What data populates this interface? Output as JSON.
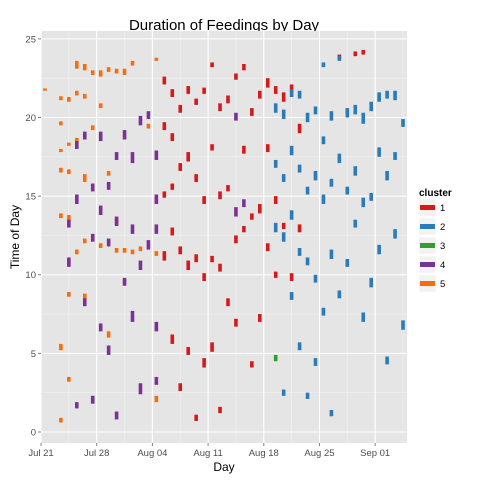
{
  "chart_data": {
    "type": "scatter",
    "title": "Duration of Feedings by Day",
    "xlabel": "Day",
    "ylabel": "Time of Day",
    "x_ticks": [
      "Jul 21",
      "Jul 28",
      "Aug 04",
      "Aug 11",
      "Aug 18",
      "Aug 25",
      "Sep 01"
    ],
    "y_ticks": [
      "0",
      "5",
      "10",
      "15",
      "20",
      "25"
    ],
    "xlim": [
      "2013-07-21",
      "2013-09-05"
    ],
    "ylim": [
      -0.7,
      25.5
    ],
    "grid": true,
    "legend": {
      "title": "cluster",
      "position": "right",
      "entries": [
        "1",
        "2",
        "3",
        "4",
        "5"
      ]
    },
    "colors": {
      "1": "#d7191c",
      "2": "#2c7bb6",
      "3": "#33a02c",
      "4": "#7b3294",
      "5": "#f46d0f",
      "panel": "#e5e5e5",
      "grid": "#ffffff"
    },
    "series": [
      {
        "name": "5",
        "x": [
          "2013-07-21",
          "2013-07-23",
          "2013-07-23",
          "2013-07-23",
          "2013-07-23",
          "2013-07-23",
          "2013-07-23",
          "2013-07-23",
          "2013-07-24",
          "2013-07-24",
          "2013-07-24",
          "2013-07-24",
          "2013-07-24",
          "2013-07-24",
          "2013-07-25",
          "2013-07-25",
          "2013-07-25",
          "2013-07-25",
          "2013-07-26",
          "2013-07-26",
          "2013-07-26",
          "2013-07-26",
          "2013-07-26",
          "2013-07-27",
          "2013-07-27",
          "2013-07-28",
          "2013-07-28",
          "2013-07-28",
          "2013-07-29",
          "2013-07-29",
          "2013-07-29",
          "2013-07-30",
          "2013-07-30",
          "2013-07-30",
          "2013-07-31",
          "2013-07-31",
          "2013-08-01",
          "2013-08-01",
          "2013-08-02",
          "2013-08-03",
          "2013-08-04",
          "2013-08-04",
          "2013-08-04"
        ],
        "y": [
          21.7,
          21.1,
          19.5,
          17.8,
          16.5,
          13.6,
          5.2,
          0.6,
          21.0,
          18.2,
          16.4,
          13.4,
          8.6,
          3.2,
          23.1,
          21.4,
          18.4,
          11.3,
          23.0,
          21.2,
          15.9,
          12.0,
          8.4,
          22.7,
          19.2,
          22.6,
          20.6,
          11.7,
          22.9,
          16.3,
          6.0,
          22.8,
          13.3,
          11.4,
          22.7,
          11.4,
          23.3,
          11.3,
          11.5,
          19.3,
          23.6,
          11.2,
          1.9
        ],
        "duration_hours": [
          0.15,
          0.25,
          0.25,
          0.2,
          0.3,
          0.3,
          0.4,
          0.3,
          0.3,
          0.2,
          0.3,
          0.4,
          0.3,
          0.3,
          0.5,
          0.3,
          0.3,
          0.3,
          0.4,
          0.3,
          0.5,
          0.3,
          0.4,
          0.3,
          0.3,
          0.4,
          0.3,
          0.3,
          0.3,
          0.3,
          0.4,
          0.3,
          0.3,
          0.3,
          0.4,
          0.3,
          0.3,
          0.3,
          0.3,
          0.3,
          0.2,
          0.3,
          0.4
        ]
      },
      {
        "name": "4",
        "x": [
          "2013-07-24",
          "2013-07-24",
          "2013-07-25",
          "2013-07-25",
          "2013-07-25",
          "2013-07-26",
          "2013-07-26",
          "2013-07-27",
          "2013-07-27",
          "2013-07-27",
          "2013-07-28",
          "2013-07-28",
          "2013-07-28",
          "2013-07-29",
          "2013-07-29",
          "2013-07-29",
          "2013-07-30",
          "2013-07-30",
          "2013-07-30",
          "2013-07-31",
          "2013-07-31",
          "2013-08-01",
          "2013-08-01",
          "2013-08-01",
          "2013-08-02",
          "2013-08-02",
          "2013-08-02",
          "2013-08-03",
          "2013-08-03",
          "2013-08-04",
          "2013-08-04",
          "2013-08-04",
          "2013-08-04",
          "2013-08-04",
          "2013-08-14",
          "2013-08-14",
          "2013-08-15"
        ],
        "y": [
          13.0,
          10.5,
          18.0,
          14.5,
          1.5,
          18.6,
          8.0,
          15.3,
          12.1,
          1.8,
          18.5,
          13.8,
          6.4,
          15.4,
          11.8,
          4.9,
          17.3,
          13.1,
          0.8,
          18.6,
          9.3,
          17.1,
          12.6,
          7.0,
          19.5,
          10.3,
          2.4,
          19.9,
          11.6,
          17.3,
          14.5,
          12.6,
          6.4,
          3.0,
          19.8,
          13.7,
          14.3
        ],
        "duration_hours": [
          0.5,
          0.6,
          0.5,
          0.6,
          0.4,
          0.5,
          0.5,
          0.5,
          0.5,
          0.5,
          0.6,
          0.6,
          0.5,
          0.5,
          0.5,
          0.6,
          0.5,
          0.6,
          0.5,
          0.6,
          0.5,
          0.7,
          0.6,
          0.7,
          0.6,
          0.6,
          0.7,
          0.5,
          0.6,
          0.6,
          0.6,
          0.6,
          0.6,
          0.5,
          0.5,
          0.6,
          0.5
        ]
      },
      {
        "name": "3",
        "x": [
          "2013-08-19"
        ],
        "y": [
          4.5
        ],
        "duration_hours": [
          0.4
        ]
      },
      {
        "name": "1",
        "x": [
          "2013-08-05",
          "2013-08-05",
          "2013-08-05",
          "2013-08-05",
          "2013-08-06",
          "2013-08-06",
          "2013-08-06",
          "2013-08-06",
          "2013-08-06",
          "2013-08-07",
          "2013-08-07",
          "2013-08-07",
          "2013-08-07",
          "2013-08-08",
          "2013-08-08",
          "2013-08-08",
          "2013-08-08",
          "2013-08-09",
          "2013-08-09",
          "2013-08-09",
          "2013-08-09",
          "2013-08-10",
          "2013-08-10",
          "2013-08-10",
          "2013-08-10",
          "2013-08-11",
          "2013-08-11",
          "2013-08-11",
          "2013-08-11",
          "2013-08-12",
          "2013-08-12",
          "2013-08-12",
          "2013-08-12",
          "2013-08-13",
          "2013-08-13",
          "2013-08-13",
          "2013-08-14",
          "2013-08-14",
          "2013-08-14",
          "2013-08-15",
          "2013-08-15",
          "2013-08-15",
          "2013-08-16",
          "2013-08-16",
          "2013-08-16",
          "2013-08-17",
          "2013-08-17",
          "2013-08-17",
          "2013-08-18",
          "2013-08-18",
          "2013-08-18",
          "2013-08-19",
          "2013-08-19",
          "2013-08-19",
          "2013-08-20",
          "2013-08-20",
          "2013-08-21",
          "2013-08-21",
          "2013-08-22",
          "2013-08-22",
          "2013-08-27",
          "2013-08-29",
          "2013-08-30"
        ],
        "y": [
          22.1,
          19.2,
          14.9,
          10.9,
          21.3,
          18.5,
          15.4,
          12.5,
          5.6,
          20.3,
          16.6,
          11.3,
          2.6,
          21.5,
          17.2,
          10.3,
          4.9,
          20.8,
          15.9,
          10.8,
          0.7,
          21.5,
          14.5,
          9.6,
          4.1,
          23.2,
          17.9,
          10.8,
          5.1,
          20.4,
          14.8,
          10.2,
          1.2,
          20.9,
          15.3,
          8.0,
          22.4,
          12.0,
          6.7,
          23.0,
          17.7,
          12.7,
          20.1,
          13.5,
          4.1,
          21.2,
          13.9,
          7.0,
          21.9,
          17.8,
          11.5,
          21.5,
          14.5,
          9.8,
          21.0,
          12.9,
          21.6,
          9.6,
          19.0,
          12.7,
          23.7,
          23.9,
          24.0
        ],
        "duration_hours": [
          0.5,
          0.5,
          0.4,
          0.6,
          0.5,
          0.5,
          0.4,
          0.5,
          0.6,
          0.5,
          0.5,
          0.5,
          0.5,
          0.5,
          0.6,
          0.6,
          0.5,
          0.4,
          0.5,
          0.5,
          0.4,
          0.4,
          0.5,
          0.5,
          0.6,
          0.3,
          0.4,
          0.4,
          0.6,
          0.5,
          0.5,
          0.5,
          0.4,
          0.5,
          0.4,
          0.5,
          0.4,
          0.5,
          0.5,
          0.4,
          0.5,
          0.4,
          0.5,
          0.4,
          0.4,
          0.5,
          0.6,
          0.5,
          0.6,
          0.5,
          0.5,
          0.5,
          0.5,
          0.4,
          0.6,
          0.4,
          0.5,
          0.5,
          0.6,
          0.5,
          0.3,
          0.3,
          0.3
        ]
      },
      {
        "name": "2",
        "x": [
          "2013-08-19",
          "2013-08-19",
          "2013-08-19",
          "2013-08-20",
          "2013-08-20",
          "2013-08-20",
          "2013-08-20",
          "2013-08-21",
          "2013-08-21",
          "2013-08-21",
          "2013-08-21",
          "2013-08-22",
          "2013-08-22",
          "2013-08-22",
          "2013-08-22",
          "2013-08-23",
          "2013-08-23",
          "2013-08-23",
          "2013-08-23",
          "2013-08-24",
          "2013-08-24",
          "2013-08-24",
          "2013-08-24",
          "2013-08-25",
          "2013-08-25",
          "2013-08-25",
          "2013-08-25",
          "2013-08-26",
          "2013-08-26",
          "2013-08-26",
          "2013-08-26",
          "2013-08-27",
          "2013-08-27",
          "2013-08-27",
          "2013-08-28",
          "2013-08-28",
          "2013-08-28",
          "2013-08-29",
          "2013-08-29",
          "2013-08-29",
          "2013-08-30",
          "2013-08-30",
          "2013-08-30",
          "2013-08-31",
          "2013-08-31",
          "2013-08-31",
          "2013-09-01",
          "2013-09-01",
          "2013-09-01",
          "2013-09-02",
          "2013-09-02",
          "2013-09-02",
          "2013-09-03",
          "2013-09-03",
          "2013-09-03",
          "2013-09-04",
          "2013-09-04"
        ],
        "y": [
          20.3,
          16.8,
          12.7,
          19.9,
          15.9,
          12.1,
          2.3,
          21.3,
          17.6,
          13.5,
          8.4,
          21.2,
          16.5,
          11.2,
          5.2,
          19.7,
          15.1,
          10.6,
          2.1,
          20.2,
          16.0,
          9.5,
          4.2,
          23.2,
          18.3,
          14.5,
          7.4,
          19.8,
          15.6,
          11.0,
          1.0,
          23.6,
          17.1,
          8.5,
          20.0,
          15.1,
          10.5,
          20.2,
          16.3,
          13.0,
          19.6,
          14.3,
          7.0,
          20.4,
          14.7,
          9.2,
          21.0,
          17.5,
          11.3,
          21.2,
          16.0,
          4.3,
          21.1,
          17.3,
          12.3,
          19.4,
          6.5
        ],
        "duration_hours": [
          0.6,
          0.5,
          0.6,
          0.6,
          0.5,
          0.6,
          0.4,
          0.5,
          0.6,
          0.6,
          0.5,
          0.5,
          0.5,
          0.5,
          0.5,
          0.6,
          0.5,
          0.5,
          0.4,
          0.5,
          0.6,
          0.5,
          0.5,
          0.3,
          0.5,
          0.6,
          0.5,
          0.6,
          0.5,
          0.6,
          0.4,
          0.3,
          0.6,
          0.5,
          0.6,
          0.5,
          0.5,
          0.6,
          0.6,
          0.5,
          0.7,
          0.6,
          0.6,
          0.6,
          0.5,
          0.6,
          0.6,
          0.6,
          0.6,
          0.5,
          0.6,
          0.5,
          0.6,
          0.5,
          0.6,
          0.5,
          0.6
        ]
      }
    ]
  }
}
